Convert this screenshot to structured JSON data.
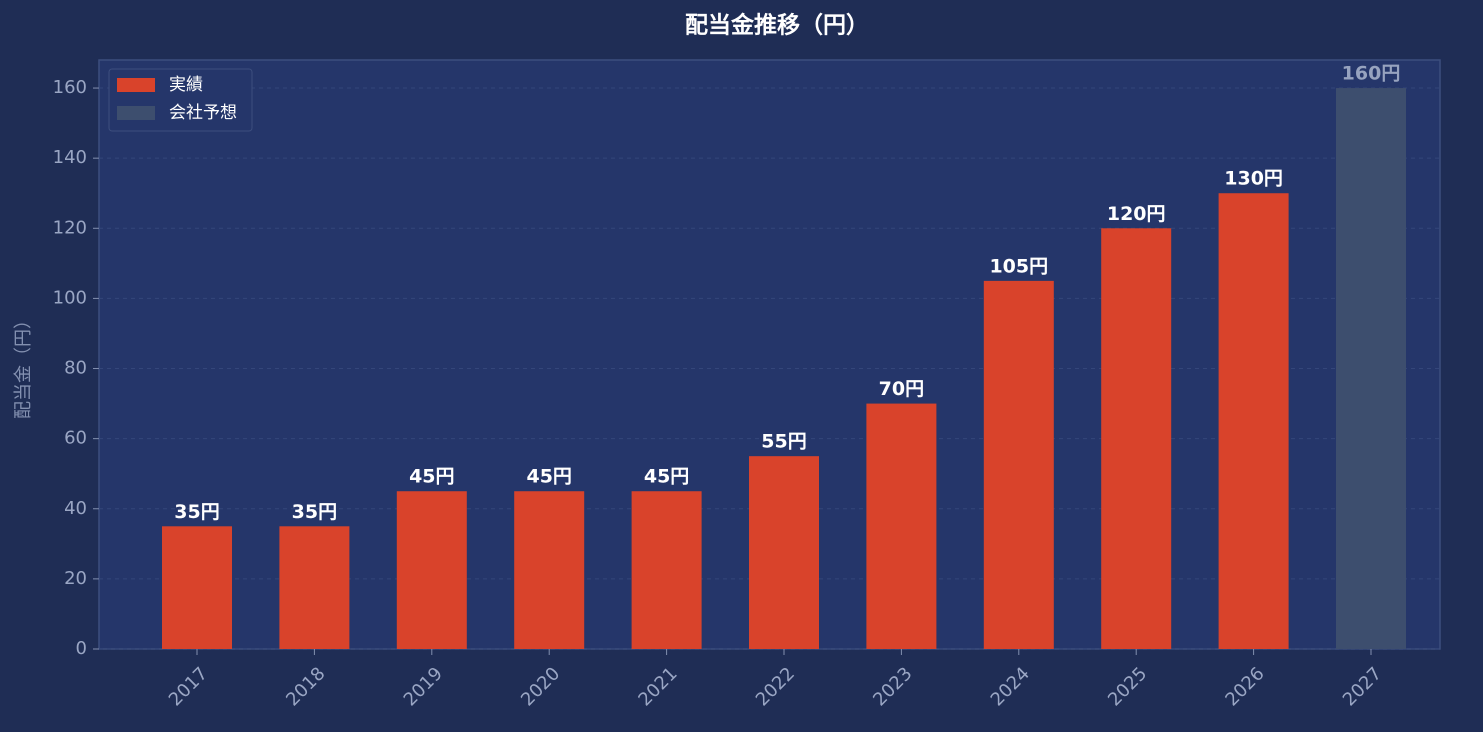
{
  "chart_data": {
    "type": "bar",
    "title": "配当金推移（円）",
    "ylabel": "配当金（円）",
    "categories": [
      "2017",
      "2018",
      "2019",
      "2020",
      "2021",
      "2022",
      "2023",
      "2024",
      "2025",
      "2026",
      "2027"
    ],
    "series": [
      {
        "name": "実績",
        "color": "#d9432b",
        "label_color": "#ffffff",
        "values": [
          35,
          35,
          45,
          45,
          45,
          55,
          70,
          105,
          120,
          130,
          null
        ],
        "value_labels": [
          "35円",
          "35円",
          "45円",
          "45円",
          "45円",
          "55円",
          "70円",
          "105円",
          "120円",
          "130円",
          null
        ]
      },
      {
        "name": "会社予想",
        "color": "#3d4e6e",
        "label_color": "#97a3bf",
        "values": [
          null,
          null,
          null,
          null,
          null,
          null,
          null,
          null,
          null,
          null,
          160
        ],
        "value_labels": [
          null,
          null,
          null,
          null,
          null,
          null,
          null,
          null,
          null,
          null,
          "160円"
        ]
      }
    ],
    "ylim": [
      0,
      168
    ],
    "yticks": [
      0,
      20,
      40,
      60,
      80,
      100,
      120,
      140,
      160
    ],
    "grid": true,
    "legend": "upper left"
  }
}
